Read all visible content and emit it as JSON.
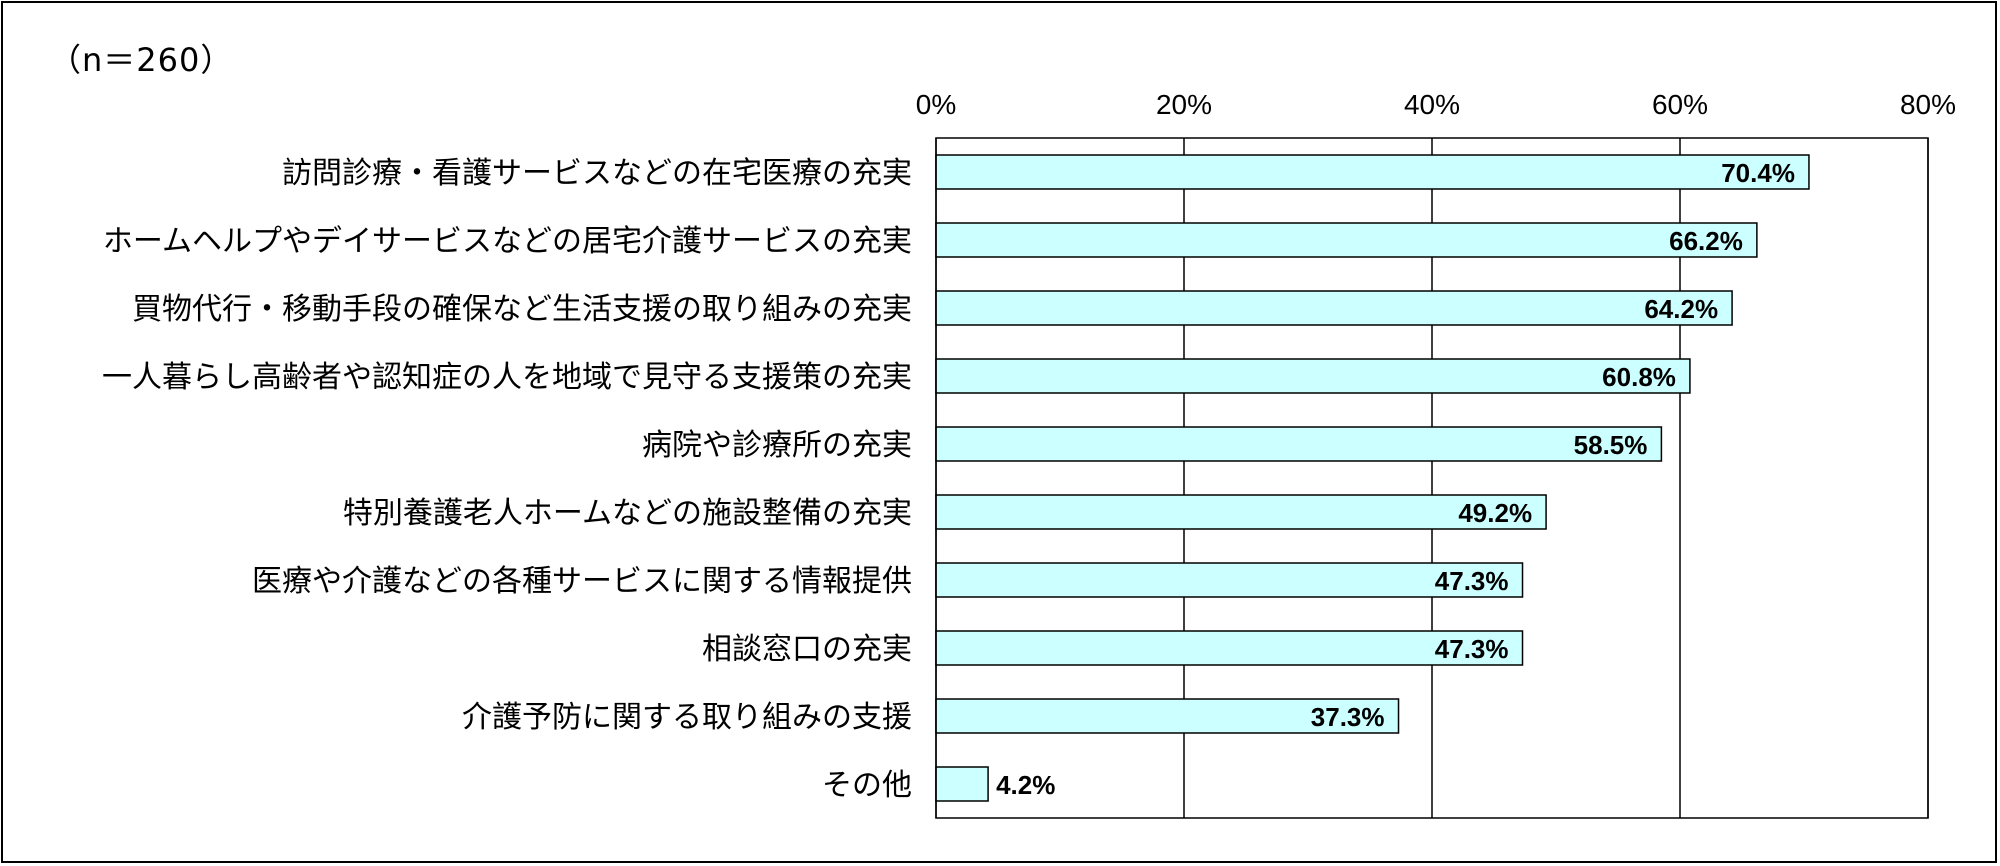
{
  "sample_note": "（n＝260）",
  "chart_data": {
    "type": "bar",
    "orientation": "horizontal",
    "title": "",
    "xlabel": "",
    "ylabel": "",
    "xlim": [
      0,
      80
    ],
    "grid": true,
    "legend": "none",
    "x_ticks": [
      "0%",
      "20%",
      "40%",
      "60%",
      "80%"
    ],
    "x_tick_values": [
      0,
      20,
      40,
      60,
      80
    ],
    "bar_color": "#ccffff",
    "bar_edge_color": "#000000",
    "categories": [
      "訪問診療・看護サービスなどの在宅医療の充実",
      "ホームヘルプやデイサービスなどの居宅介護サービスの充実",
      "買物代行・移動手段の確保など生活支援の取り組みの充実",
      "一人暮らし高齢者や認知症の人を地域で見守る支援策の充実",
      "病院や診療所の充実",
      "特別養護老人ホームなどの施設整備の充実",
      "医療や介護などの各種サービスに関する情報提供",
      "相談窓口の充実",
      "介護予防に関する取り組みの支援",
      "その他"
    ],
    "values": [
      70.4,
      66.2,
      64.2,
      60.8,
      58.5,
      49.2,
      47.3,
      47.3,
      37.3,
      4.2
    ],
    "data_labels": [
      "70.4%",
      "66.2%",
      "64.2%",
      "60.8%",
      "58.5%",
      "49.2%",
      "47.3%",
      "47.3%",
      "37.3%",
      "4.2%"
    ]
  }
}
